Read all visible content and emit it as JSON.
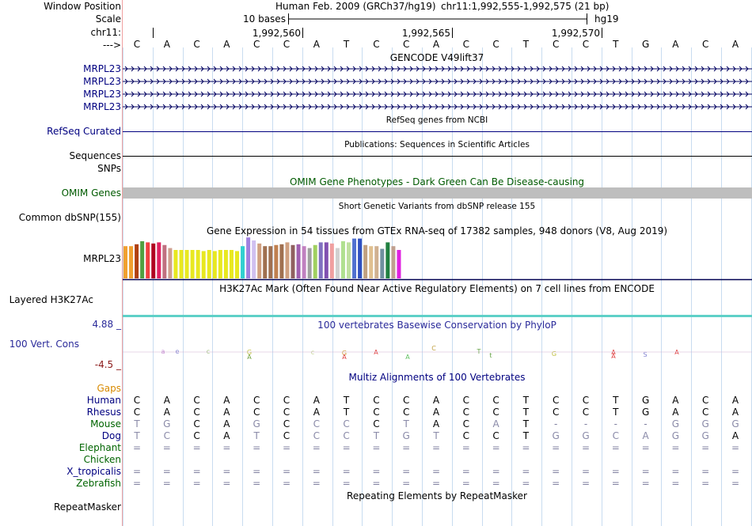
{
  "header": {
    "window_position_label": "Window Position",
    "scale_label": "Scale",
    "chrom_label": "chr11:",
    "strand_label": "--->",
    "assembly": "Human Feb. 2009 (GRCh37/hg19)",
    "position": "chr11:1,992,555-1,992,575 (21 bp)",
    "scale_text": "10 bases",
    "db": "hg19",
    "coord_ticks": [
      "1,992,560",
      "1,992,565",
      "1,992,570"
    ]
  },
  "reference_bases": [
    "C",
    "A",
    "C",
    "A",
    "C",
    "C",
    "A",
    "T",
    "C",
    "C",
    "A",
    "C",
    "C",
    "T",
    "C",
    "C",
    "T",
    "G",
    "A",
    "C",
    "A"
  ],
  "gencode": {
    "title": "GENCODE V49lift37",
    "labels": [
      "MRPL23",
      "MRPL23",
      "MRPL23",
      "MRPL23"
    ]
  },
  "refseq": {
    "title": "RefSeq genes from NCBI",
    "label": "RefSeq Curated"
  },
  "publications": {
    "title": "Publications: Sequences in Scientific Articles",
    "label1": "Sequences",
    "label2": "SNPs"
  },
  "omim": {
    "title": "OMIM Gene Phenotypes - Dark Green Can Be Disease-causing",
    "label": "OMIM Genes"
  },
  "dbsnp": {
    "label": "Common dbSNP(155)",
    "title": "Short Genetic Variants from dbSNP release 155"
  },
  "gtex": {
    "title": "Gene Expression in 54 tissues from GTEx RNA-seq of 17382 samples, 948 donors (V8, Aug 2019)",
    "label": "MRPL23",
    "bars": [
      {
        "v": 0.85,
        "c": "#f0a030"
      },
      {
        "v": 0.85,
        "c": "#f0a030"
      },
      {
        "v": 0.9,
        "c": "#b04010"
      },
      {
        "v": 0.98,
        "c": "#50a040"
      },
      {
        "v": 0.95,
        "c": "#f04040"
      },
      {
        "v": 0.92,
        "c": "#b00020"
      },
      {
        "v": 0.95,
        "c": "#e02060"
      },
      {
        "v": 0.88,
        "c": "#c07080"
      },
      {
        "v": 0.8,
        "c": "#d0a090"
      },
      {
        "v": 0.75,
        "c": "#e8e820"
      },
      {
        "v": 0.75,
        "c": "#e8e820"
      },
      {
        "v": 0.75,
        "c": "#e8e820"
      },
      {
        "v": 0.75,
        "c": "#e8e820"
      },
      {
        "v": 0.75,
        "c": "#e8e820"
      },
      {
        "v": 0.72,
        "c": "#e8e820"
      },
      {
        "v": 0.75,
        "c": "#e8e820"
      },
      {
        "v": 0.72,
        "c": "#e8e820"
      },
      {
        "v": 0.75,
        "c": "#e8e820"
      },
      {
        "v": 0.75,
        "c": "#e8e820"
      },
      {
        "v": 0.75,
        "c": "#e8e820"
      },
      {
        "v": 0.72,
        "c": "#e8e820"
      },
      {
        "v": 0.85,
        "c": "#30d0d0"
      },
      {
        "v": 1.08,
        "c": "#a080e0"
      },
      {
        "v": 1.0,
        "c": "#d0c0f0"
      },
      {
        "v": 0.92,
        "c": "#d0a080"
      },
      {
        "v": 0.85,
        "c": "#a07050"
      },
      {
        "v": 0.85,
        "c": "#a07050"
      },
      {
        "v": 0.88,
        "c": "#c08050"
      },
      {
        "v": 0.9,
        "c": "#a07050"
      },
      {
        "v": 0.95,
        "c": "#d0a080"
      },
      {
        "v": 0.88,
        "c": "#906060"
      },
      {
        "v": 0.9,
        "c": "#a060b0"
      },
      {
        "v": 0.85,
        "c": "#c080c0"
      },
      {
        "v": 0.8,
        "c": "#a0a0a0"
      },
      {
        "v": 0.88,
        "c": "#a0d060"
      },
      {
        "v": 0.95,
        "c": "#8070c0"
      },
      {
        "v": 0.95,
        "c": "#8050b0"
      },
      {
        "v": 0.92,
        "c": "#f0a0a0"
      },
      {
        "v": 0.8,
        "c": "#d0d0d0"
      },
      {
        "v": 0.98,
        "c": "#b0e090"
      },
      {
        "v": 0.95,
        "c": "#c0e0a0"
      },
      {
        "v": 1.05,
        "c": "#5070d0"
      },
      {
        "v": 1.05,
        "c": "#3050c0"
      },
      {
        "v": 0.88,
        "c": "#c0a080"
      },
      {
        "v": 0.85,
        "c": "#e0c090"
      },
      {
        "v": 0.85,
        "c": "#d0b090"
      },
      {
        "v": 0.78,
        "c": "#7090a0"
      },
      {
        "v": 0.95,
        "c": "#208040"
      },
      {
        "v": 0.85,
        "c": "#c0a090"
      },
      {
        "v": 0.75,
        "c": "#e020e0"
      }
    ]
  },
  "h3k27ac": {
    "title": "H3K27Ac Mark (Often Found Near Active Regulatory Elements) on 7 cell lines from ENCODE",
    "label": "Layered H3K27Ac"
  },
  "cons": {
    "title": "100 vertebrates Basewise Conservation by PhyloP",
    "label": "100 Vert. Cons",
    "ymax": "4.88 _",
    "ymin": "-4.5 _"
  },
  "multiz": {
    "title": "Multiz Alignments of 100 Vertebrates",
    "gaps_label": "Gaps",
    "species": [
      {
        "name": "Human",
        "bases": [
          "C",
          "A",
          "C",
          "A",
          "C",
          "C",
          "A",
          "T",
          "C",
          "C",
          "A",
          "C",
          "C",
          "T",
          "C",
          "C",
          "T",
          "G",
          "A",
          "C",
          "A"
        ],
        "color": "#000080"
      },
      {
        "name": "Rhesus",
        "bases": [
          "C",
          "A",
          "C",
          "A",
          "C",
          "C",
          "A",
          "T",
          "C",
          "C",
          "A",
          "C",
          "C",
          "T",
          "C",
          "C",
          "T",
          "G",
          "A",
          "C",
          "A"
        ],
        "color": "#000080"
      },
      {
        "name": "Mouse",
        "bases": [
          "T",
          "G",
          "C",
          "A",
          "G",
          "C",
          "C",
          "C",
          "C",
          "T",
          "A",
          "C",
          "A",
          "T",
          "-",
          "-",
          "-",
          "-",
          "G",
          "G",
          "G"
        ],
        "color": "#006400"
      },
      {
        "name": "Dog",
        "bases": [
          "T",
          "C",
          "C",
          "A",
          "T",
          "C",
          "C",
          "C",
          "T",
          "G",
          "T",
          "C",
          "C",
          "T",
          "G",
          "G",
          "C",
          "A",
          "G",
          "G",
          "A"
        ],
        "color": "#000080"
      },
      {
        "name": "Elephant",
        "bases": [
          "=",
          "=",
          "=",
          "=",
          "=",
          "=",
          "=",
          "=",
          "=",
          "=",
          "=",
          "=",
          "=",
          "=",
          "=",
          "=",
          "=",
          "=",
          "=",
          "=",
          "="
        ],
        "color": "#006400"
      },
      {
        "name": "Chicken",
        "bases": [
          "",
          "",
          "",
          "",
          "",
          "",
          "",
          "",
          "",
          "",
          "",
          "",
          "",
          "",
          "",
          "",
          "",
          "",
          "",
          "",
          ""
        ],
        "color": "#006400"
      },
      {
        "name": "X_tropicalis",
        "bases": [
          "=",
          "=",
          "=",
          "=",
          "=",
          "=",
          "=",
          "=",
          "=",
          "=",
          "=",
          "=",
          "=",
          "=",
          "=",
          "=",
          "=",
          "=",
          "=",
          "=",
          "="
        ],
        "color": "#000080"
      },
      {
        "name": "Zebrafish",
        "bases": [
          "=",
          "=",
          "=",
          "=",
          "=",
          "=",
          "=",
          "=",
          "=",
          "=",
          "=",
          "=",
          "=",
          "=",
          "=",
          "=",
          "=",
          "=",
          "=",
          "=",
          "="
        ],
        "color": "#006400"
      }
    ]
  },
  "repeatmasker": {
    "title": "Repeating Elements by RepeatMasker",
    "label": "RepeatMasker"
  }
}
